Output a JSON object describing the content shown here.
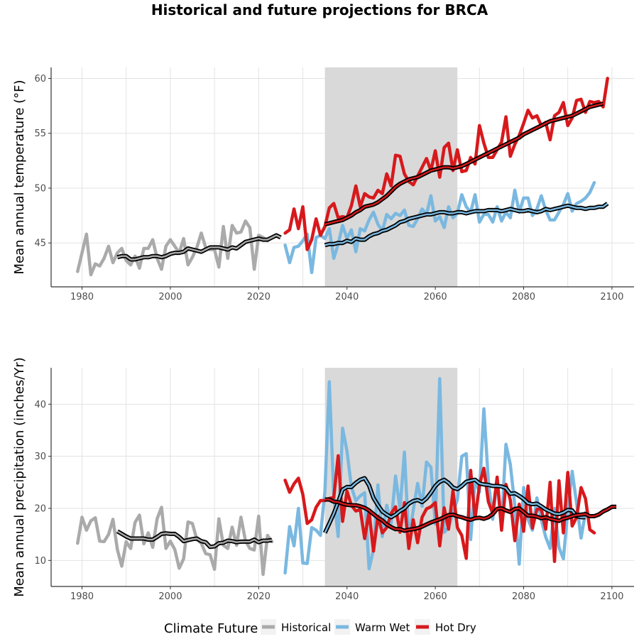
{
  "title": "Historical and future projections for BRCA",
  "legend": {
    "title": "Climate Future",
    "items": [
      {
        "label": "Historical",
        "color": "#aaaaaa"
      },
      {
        "label": "Warm Wet",
        "color": "#7ab8e0"
      },
      {
        "label": "Hot Dry",
        "color": "#d7191c"
      }
    ]
  },
  "chart_data": [
    {
      "type": "line",
      "ylabel": "Mean annual temperature (°F)",
      "xlim": [
        1973,
        2105
      ],
      "ylim": [
        41,
        61
      ],
      "xticks": [
        1980,
        2000,
        2020,
        2040,
        2060,
        2080,
        2100
      ],
      "yticks": [
        45,
        50,
        55,
        60
      ],
      "shaded_period": [
        2035,
        2065
      ],
      "series": [
        {
          "name": "Historical",
          "color": "#aaaaaa",
          "start": 1979,
          "values": [
            42.4,
            44.1,
            45.8,
            42.1,
            43.1,
            42.9,
            43.6,
            44.7,
            43.2,
            44.1,
            44.5,
            43.4,
            43.0,
            43.8,
            42.7,
            44.5,
            44.5,
            45.3,
            43.6,
            42.6,
            44.7,
            45.3,
            44.7,
            44.1,
            45.4,
            43.0,
            43.7,
            44.6,
            45.9,
            44.6,
            44.4,
            44.4,
            42.8,
            46.5,
            43.6,
            46.6,
            45.9,
            46.0,
            47.0,
            46.4,
            42.6,
            45.7,
            45.5,
            45.2
          ]
        },
        {
          "name": "Warm Wet",
          "color": "#7ab8e0",
          "start": 2026,
          "values": [
            44.8,
            43.2,
            44.6,
            44.7,
            45.2,
            45.8,
            42.3,
            45.5,
            45.7,
            45.4,
            46.3,
            43.6,
            44.9,
            46.6,
            45.4,
            46.2,
            44.2,
            46.3,
            46.1,
            47.1,
            47.8,
            46.7,
            46.1,
            47.6,
            47.2,
            47.7,
            47.5,
            48.0,
            46.6,
            46.5,
            47.2,
            48.1,
            47.6,
            49.3,
            47.0,
            47.4,
            46.4,
            48.3,
            47.3,
            47.7,
            49.4,
            48.3,
            47.8,
            49.4,
            46.9,
            47.6,
            47.6,
            46.9,
            48.3,
            47.0,
            47.8,
            47.3,
            49.8,
            47.8,
            49.1,
            49.1,
            47.5,
            48.1,
            49.3,
            48.0,
            47.1,
            47.1,
            47.8,
            48.5,
            49.5,
            47.9,
            48.6,
            48.8,
            49.1,
            49.6,
            50.5
          ]
        },
        {
          "name": "Hot Dry",
          "color": "#d7191c",
          "start": 2026,
          "values": [
            45.9,
            46.2,
            48.1,
            46.3,
            48.3,
            44.4,
            45.3,
            47.2,
            45.7,
            46.5,
            48.2,
            48.6,
            47.3,
            47.4,
            47.3,
            48.4,
            50.2,
            48.3,
            49.5,
            49.2,
            49.1,
            49.8,
            49.5,
            51.3,
            50.2,
            53.0,
            52.9,
            51.3,
            50.6,
            50.3,
            51.1,
            51.9,
            52.7,
            51.6,
            53.4,
            51.0,
            53.7,
            54.1,
            51.6,
            53.5,
            51.5,
            51.6,
            52.8,
            52.2,
            55.7,
            54.1,
            52.8,
            52.8,
            53.5,
            54.2,
            56.5,
            52.9,
            54.0,
            54.8,
            55.9,
            57.1,
            56.4,
            56.6,
            55.7,
            56.0,
            54.4,
            56.6,
            56.9,
            57.8,
            55.7,
            56.4,
            58.0,
            58.1,
            56.9,
            57.9,
            57.8,
            57.9,
            57.4,
            60.0
          ]
        }
      ],
      "running_means": [
        {
          "series": "Historical",
          "start": 1988,
          "values": [
            43.7,
            43.8,
            43.8,
            43.5,
            43.5,
            43.6,
            43.7,
            43.7,
            43.8,
            43.8,
            43.7,
            43.8,
            44.0,
            44.1,
            44.1,
            44.2,
            44.5,
            44.4,
            44.3,
            44.2,
            44.4,
            44.6,
            44.6,
            44.6,
            44.5,
            44.4,
            44.6,
            44.5,
            44.8,
            45.1,
            45.2,
            45.3,
            45.4,
            45.3,
            45.3,
            45.5,
            45.7,
            45.5
          ]
        },
        {
          "series": "Warm Wet",
          "start": 2035,
          "values": [
            44.8,
            44.9,
            44.9,
            45.0,
            45.0,
            45.2,
            45.1,
            45.4,
            45.3,
            45.3,
            45.6,
            45.8,
            45.9,
            46.1,
            46.2,
            46.4,
            46.6,
            46.9,
            47.0,
            47.2,
            47.3,
            47.4,
            47.5,
            47.6,
            47.6,
            47.7,
            47.8,
            47.8,
            47.7,
            47.7,
            47.8,
            47.8,
            47.7,
            47.8,
            47.9,
            47.9,
            47.9,
            48.0,
            48.0,
            48.0,
            47.9,
            48.0,
            48.1,
            48.0,
            47.9,
            47.9,
            48.0,
            47.9,
            47.8,
            47.9,
            48.1,
            48.0,
            48.1,
            48.2,
            48.3,
            48.4,
            48.3,
            48.2,
            48.2,
            48.1,
            48.2,
            48.2,
            48.3,
            48.3,
            48.6
          ]
        },
        {
          "series": "Hot Dry",
          "start": 2035,
          "values": [
            46.7,
            46.8,
            46.9,
            47.0,
            47.1,
            47.3,
            47.5,
            47.8,
            48.0,
            48.3,
            48.4,
            48.5,
            48.7,
            49.0,
            49.3,
            49.7,
            50.1,
            50.4,
            50.6,
            50.8,
            50.9,
            51.0,
            51.2,
            51.4,
            51.6,
            51.7,
            51.8,
            51.9,
            51.9,
            51.8,
            51.9,
            52.0,
            52.2,
            52.4,
            52.6,
            52.8,
            53.0,
            53.2,
            53.4,
            53.6,
            53.8,
            54.0,
            54.2,
            54.4,
            54.6,
            54.9,
            55.1,
            55.3,
            55.5,
            55.7,
            55.9,
            56.1,
            56.2,
            56.3,
            56.4,
            56.5,
            56.6,
            56.8,
            57.0,
            57.2,
            57.4,
            57.5,
            57.6,
            57.7
          ]
        }
      ]
    },
    {
      "type": "line",
      "ylabel": "Mean annual precipitation (inches/Yr)",
      "xlim": [
        1973,
        2105
      ],
      "ylim": [
        5,
        47
      ],
      "xticks": [
        1980,
        2000,
        2020,
        2040,
        2060,
        2080,
        2100
      ],
      "yticks": [
        10,
        20,
        30,
        40
      ],
      "shaded_period": [
        2035,
        2065
      ],
      "series": [
        {
          "name": "Historical",
          "color": "#aaaaaa",
          "start": 1979,
          "values": [
            13.3,
            18.3,
            15.8,
            17.6,
            18.2,
            13.7,
            13.6,
            15.0,
            17.9,
            12.1,
            8.9,
            13.6,
            12.3,
            17.3,
            18.7,
            13.2,
            15.3,
            12.5,
            18.0,
            20.2,
            12.3,
            13.7,
            12.1,
            8.5,
            10.3,
            17.4,
            17.1,
            14.0,
            13.3,
            11.3,
            11.1,
            8.3,
            18.0,
            12.9,
            12.3,
            16.4,
            12.9,
            18.3,
            13.8,
            12.3,
            12.0,
            18.5,
            7.3,
            14.8,
            13.6
          ]
        },
        {
          "name": "Warm Wet",
          "color": "#7ab8e0",
          "start": 2026,
          "values": [
            7.6,
            16.5,
            12.8,
            20.0,
            9.5,
            9.4,
            16.3,
            15.8,
            14.8,
            23.2,
            44.3,
            22.5,
            14.6,
            35.4,
            31.0,
            24.1,
            21.5,
            22.4,
            23.0,
            8.4,
            12.1,
            24.5,
            14.6,
            20.6,
            17.1,
            26.2,
            19.8,
            30.8,
            14.0,
            19.6,
            24.8,
            20.4,
            28.9,
            27.9,
            17.0,
            44.9,
            15.4,
            16.3,
            19.1,
            21.7,
            30.0,
            30.5,
            14.0,
            25.5,
            23.1,
            39.1,
            25.3,
            17.9,
            25.7,
            17.0,
            32.3,
            28.4,
            20.5,
            9.3,
            24.0,
            17.9,
            15.8,
            22.0,
            17.8,
            14.5,
            12.3,
            20.0,
            12.5,
            10.3,
            19.5,
            27.1,
            21.0,
            14.3,
            19.2
          ]
        },
        {
          "name": "Hot Dry",
          "color": "#d7191c",
          "start": 2026,
          "values": [
            25.4,
            23.1,
            24.7,
            25.8,
            22.7,
            17.1,
            17.8,
            20.2,
            21.5,
            21.5,
            21.9,
            22.1,
            30.1,
            17.5,
            23.3,
            20.6,
            19.5,
            19.8,
            14.2,
            19.3,
            11.8,
            18.5,
            15.3,
            16.3,
            19.0,
            20.3,
            15.4,
            21.1,
            12.3,
            17.8,
            13.4,
            18.3,
            19.9,
            20.3,
            21.1,
            12.8,
            20.1,
            16.0,
            23.4,
            16.3,
            14.8,
            10.4,
            27.3,
            18.0,
            24.5,
            27.7,
            21.3,
            19.0,
            26.0,
            15.8,
            24.6,
            21.6,
            13.8,
            20.8,
            15.6,
            24.3,
            16.2,
            19.8,
            19.9,
            16.0,
            25.0,
            9.8,
            25.3,
            15.3,
            26.9,
            16.6,
            18.3,
            24.0,
            21.9,
            15.9,
            15.3
          ]
        }
      ],
      "running_means": [
        {
          "series": "Historical",
          "start": 1988,
          "values": [
            15.6,
            15.1,
            14.6,
            14.2,
            14.2,
            14.2,
            14.2,
            14.0,
            14.0,
            14.5,
            15.1,
            15.2,
            15.1,
            15.1,
            14.5,
            13.7,
            13.9,
            14.1,
            14.2,
            13.7,
            13.5,
            12.6,
            12.7,
            13.3,
            13.4,
            13.8,
            13.7,
            13.5,
            13.6,
            13.6,
            13.6,
            14.0,
            13.5,
            13.8,
            13.8,
            13.9
          ]
        },
        {
          "series": "Warm Wet",
          "start": 2035,
          "values": [
            15.3,
            17.1,
            19.0,
            21.2,
            23.6,
            24.1,
            24.1,
            24.9,
            25.5,
            25.8,
            24.4,
            22.0,
            20.6,
            19.4,
            18.8,
            18.3,
            18.8,
            19.5,
            20.0,
            20.9,
            21.4,
            21.6,
            21.2,
            21.9,
            23.0,
            24.3,
            25.1,
            25.5,
            24.9,
            24.0,
            23.7,
            24.3,
            25.1,
            25.3,
            25.5,
            24.8,
            24.6,
            24.5,
            24.3,
            24.3,
            24.2,
            23.9,
            22.8,
            22.9,
            22.4,
            21.8,
            21.0,
            20.8,
            20.9,
            20.4,
            19.8,
            19.4,
            19.0,
            18.9,
            19.2,
            19.7,
            19.6,
            18.5,
            18.3,
            18.3
          ]
        },
        {
          "series": "Hot Dry",
          "start": 2035,
          "values": [
            21.7,
            21.7,
            21.3,
            21.2,
            20.9,
            20.7,
            20.6,
            20.6,
            20.4,
            20.1,
            19.6,
            18.9,
            18.2,
            17.7,
            16.9,
            16.4,
            16.0,
            16.0,
            15.7,
            15.9,
            16.0,
            16.2,
            16.5,
            16.9,
            17.3,
            17.6,
            17.9,
            18.3,
            18.7,
            18.8,
            18.5,
            18.3,
            18.0,
            17.8,
            18.1,
            18.2,
            18.0,
            18.3,
            18.9,
            19.9,
            20.0,
            19.6,
            19.3,
            19.9,
            20.0,
            19.3,
            18.6,
            18.6,
            18.4,
            18.1,
            18.3,
            18.0,
            17.8,
            17.6,
            18.0,
            18.2,
            18.5,
            18.7,
            18.8,
            18.9,
            18.5,
            18.5,
            18.8,
            19.4,
            19.8,
            20.3,
            20.3
          ]
        }
      ]
    }
  ]
}
